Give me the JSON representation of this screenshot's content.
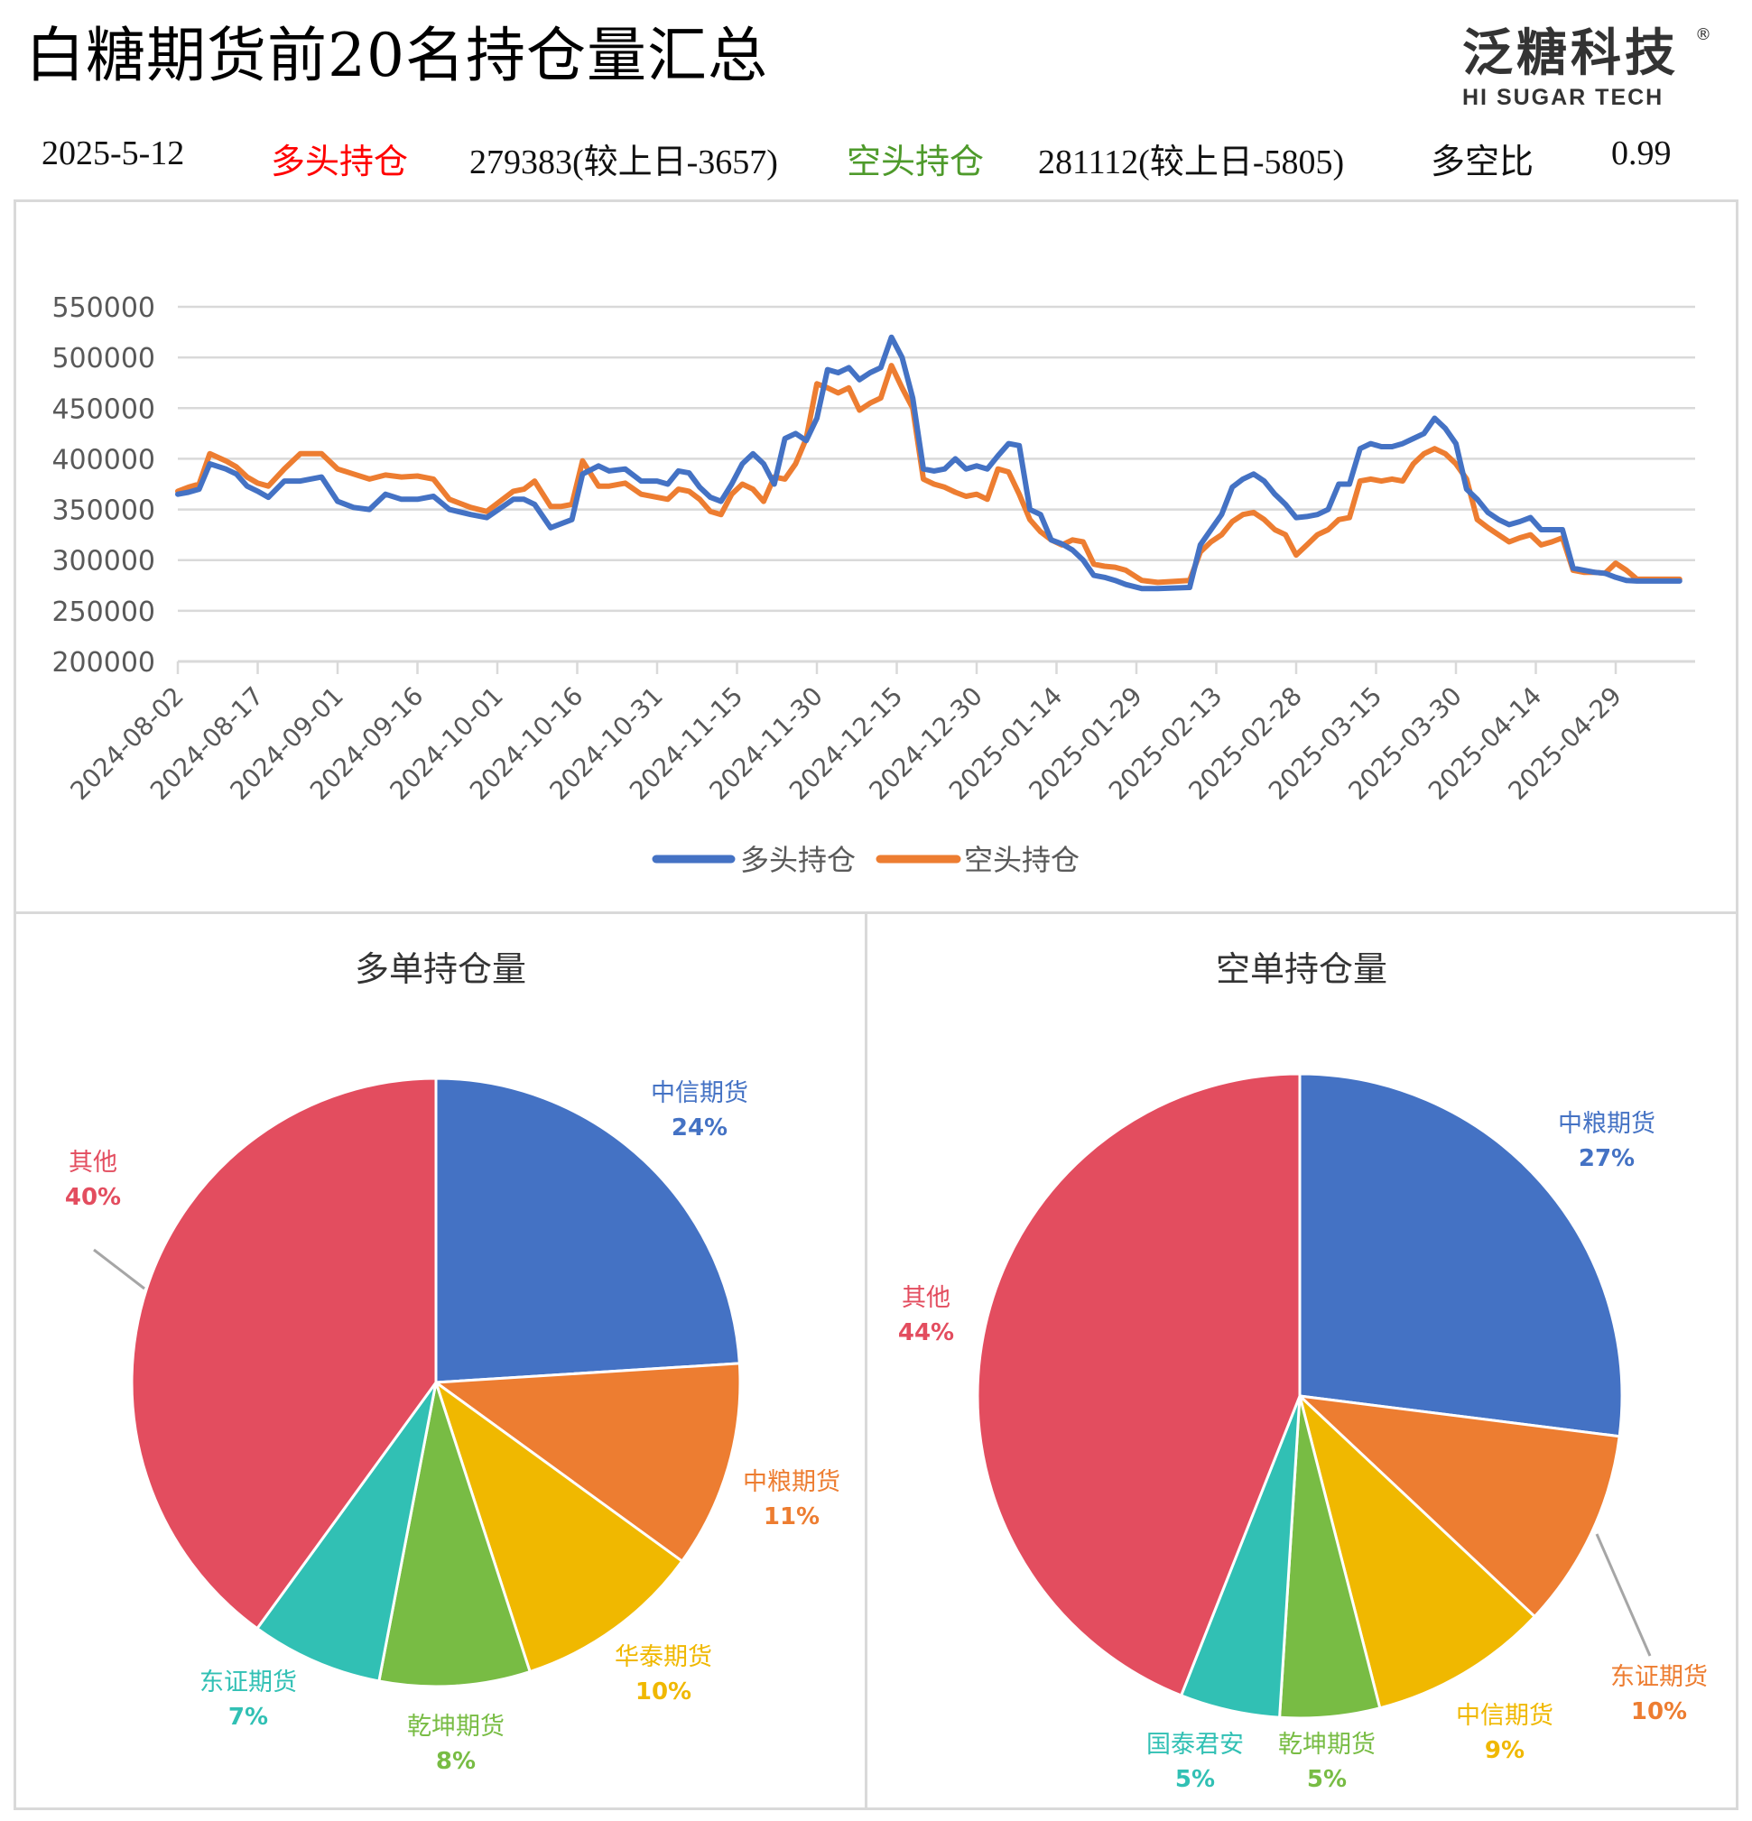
{
  "header": {
    "title": "白糖期货前20名持仓量汇总",
    "logo_cn": "泛糖科技",
    "logo_reg": "®",
    "logo_en": "HI SUGAR TECH"
  },
  "info": {
    "date": "2025-5-12",
    "long_label": "多头持仓",
    "long_value": "279383(较上日-3657)",
    "short_label": "空头持仓",
    "short_value": "281112(较上日-5805)",
    "ratio_label": "多空比",
    "ratio_value": "0.99"
  },
  "colors": {
    "long": "#4472c4",
    "short": "#ed7d31",
    "red_label": "#ff0000",
    "green_label": "#4e9a2b",
    "pie": {
      "blue": "#4472c4",
      "orange": "#ed7d31",
      "yellow": "#f0b800",
      "green": "#78bc44",
      "teal": "#31c0b4",
      "red": "#e34d5f"
    }
  },
  "chart_data": [
    {
      "type": "line",
      "title": "",
      "xlabel": "",
      "ylabel": "",
      "ylim": [
        200000,
        550000
      ],
      "yticks": [
        "550000",
        "500000",
        "450000",
        "400000",
        "350000",
        "300000",
        "250000",
        "200000"
      ],
      "grid": true,
      "legend_position": "bottom",
      "x_tick_labels": [
        "2024-08-02",
        "2024-08-17",
        "2024-09-01",
        "2024-09-16",
        "2024-10-01",
        "2024-10-16",
        "2024-10-31",
        "2024-11-15",
        "2024-11-30",
        "2024-12-15",
        "2024-12-30",
        "2025-01-14",
        "2025-01-29",
        "2025-02-13",
        "2025-02-28",
        "2025-03-15",
        "2025-03-30",
        "2025-04-14",
        "2025-04-29"
      ],
      "x_days": [
        0,
        2,
        4,
        6,
        9,
        11,
        13,
        15,
        17,
        20,
        23,
        27,
        30,
        33,
        36,
        39,
        42,
        45,
        48,
        51,
        55,
        58,
        63,
        65,
        67,
        70,
        72,
        74,
        76,
        79,
        81,
        84,
        87,
        90,
        92,
        94,
        96,
        98,
        100,
        102,
        104,
        106,
        108,
        110,
        112,
        114,
        116,
        118,
        120,
        122,
        124,
        126,
        128,
        130,
        132,
        134,
        136,
        138,
        140,
        142,
        144,
        146,
        148,
        150,
        152,
        154,
        156,
        158,
        160,
        162,
        164,
        166,
        168,
        170,
        172,
        174,
        176,
        178,
        181,
        184,
        190,
        192,
        194,
        196,
        198,
        200,
        202,
        204,
        206,
        208,
        210,
        212,
        214,
        216,
        218,
        220,
        222,
        224,
        226,
        228,
        230,
        232,
        234,
        236,
        238,
        240,
        242,
        244,
        246,
        248,
        250,
        252,
        254,
        256,
        258,
        260,
        262,
        264,
        266,
        268,
        270,
        272,
        274,
        276,
        278,
        280,
        282
      ],
      "series": [
        {
          "name": "多头持仓",
          "color": "#4472c4",
          "values": [
            365000,
            367000,
            370000,
            395000,
            390000,
            385000,
            373000,
            368000,
            362000,
            378000,
            378000,
            382000,
            358000,
            352000,
            350000,
            365000,
            360000,
            360000,
            363000,
            350000,
            345000,
            342000,
            360000,
            360000,
            355000,
            332000,
            336000,
            340000,
            385000,
            393000,
            388000,
            390000,
            378000,
            378000,
            375000,
            388000,
            386000,
            372000,
            362000,
            358000,
            375000,
            395000,
            405000,
            395000,
            375000,
            420000,
            425000,
            418000,
            440000,
            488000,
            485000,
            490000,
            478000,
            485000,
            490000,
            520000,
            500000,
            460000,
            390000,
            388000,
            390000,
            400000,
            390000,
            393000,
            390000,
            403000,
            415000,
            413000,
            350000,
            345000,
            320000,
            316000,
            310000,
            300000,
            285000,
            283000,
            280000,
            276000,
            272000,
            272000,
            273000,
            315000,
            330000,
            345000,
            372000,
            380000,
            385000,
            378000,
            365000,
            355000,
            342000,
            343000,
            345000,
            350000,
            375000,
            375000,
            410000,
            415000,
            412000,
            412000,
            415000,
            420000,
            425000,
            440000,
            430000,
            415000,
            370000,
            360000,
            347000,
            340000,
            335000,
            338000,
            342000,
            330000,
            330000,
            330000,
            292000,
            290000,
            288000,
            287000,
            283000,
            280000,
            279383,
            279383,
            279383,
            279383,
            279383
          ],
          "note": "approximate readings from chart"
        },
        {
          "name": "空头持仓",
          "color": "#ed7d31",
          "values": [
            368000,
            372000,
            375000,
            405000,
            398000,
            392000,
            382000,
            376000,
            373000,
            390000,
            405000,
            405000,
            390000,
            385000,
            380000,
            384000,
            382000,
            383000,
            380000,
            360000,
            352000,
            348000,
            368000,
            370000,
            378000,
            353000,
            353000,
            355000,
            398000,
            373000,
            373000,
            376000,
            365000,
            362000,
            360000,
            370000,
            368000,
            360000,
            348000,
            345000,
            365000,
            375000,
            370000,
            358000,
            382000,
            380000,
            395000,
            420000,
            474000,
            470000,
            465000,
            470000,
            448000,
            455000,
            460000,
            492000,
            470000,
            450000,
            380000,
            375000,
            372000,
            367000,
            363000,
            365000,
            360000,
            390000,
            387000,
            365000,
            340000,
            328000,
            320000,
            315000,
            320000,
            318000,
            296000,
            294000,
            293000,
            290000,
            280000,
            278000,
            280000,
            308000,
            318000,
            325000,
            338000,
            345000,
            347000,
            340000,
            330000,
            325000,
            305000,
            315000,
            325000,
            330000,
            340000,
            342000,
            378000,
            380000,
            378000,
            380000,
            378000,
            395000,
            405000,
            410000,
            405000,
            395000,
            380000,
            340000,
            332000,
            325000,
            318000,
            322000,
            325000,
            315000,
            318000,
            322000,
            290000,
            288000,
            288000,
            287000,
            297000,
            290000,
            281112,
            281112,
            281112,
            281112,
            281112
          ],
          "note": "approximate readings from chart"
        }
      ]
    },
    {
      "type": "pie",
      "title": "多单持仓量",
      "slices": [
        {
          "label": "中信期货",
          "pct": "24%",
          "value": 24,
          "color": "#4472c4"
        },
        {
          "label": "中粮期货",
          "pct": "11%",
          "value": 11,
          "color": "#ed7d31"
        },
        {
          "label": "华泰期货",
          "pct": "10%",
          "value": 10,
          "color": "#f0b800"
        },
        {
          "label": "乾坤期货",
          "pct": "8%",
          "value": 8,
          "color": "#78bc44"
        },
        {
          "label": "东证期货",
          "pct": "7%",
          "value": 7,
          "color": "#31c0b4"
        },
        {
          "label": "其他",
          "pct": "40%",
          "value": 40,
          "color": "#e34d5f"
        }
      ]
    },
    {
      "type": "pie",
      "title": "空单持仓量",
      "slices": [
        {
          "label": "中粮期货",
          "pct": "27%",
          "value": 27,
          "color": "#4472c4"
        },
        {
          "label": "东证期货",
          "pct": "10%",
          "value": 10,
          "color": "#ed7d31"
        },
        {
          "label": "中信期货",
          "pct": "9%",
          "value": 9,
          "color": "#f0b800"
        },
        {
          "label": "乾坤期货",
          "pct": "5%",
          "value": 5,
          "color": "#78bc44"
        },
        {
          "label": "国泰君安",
          "pct": "5%",
          "value": 5,
          "color": "#31c0b4"
        },
        {
          "label": "其他",
          "pct": "44%",
          "value": 44,
          "color": "#e34d5f"
        }
      ]
    }
  ],
  "legend": {
    "long": "多头持仓",
    "short": "空头持仓"
  }
}
